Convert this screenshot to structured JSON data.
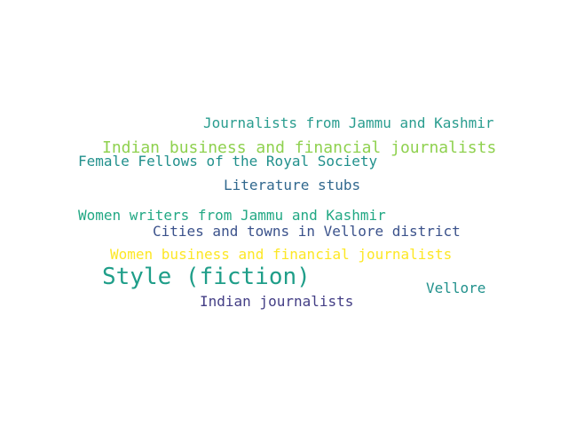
{
  "words": [
    {
      "text": "Journalists from Jammu and Kashmir",
      "color": "#2a9d8f"
    },
    {
      "text": "Indian business and financial journalists",
      "color": "#8fd14f"
    },
    {
      "text": "Female Fellows of the Royal Society",
      "color": "#21908c"
    },
    {
      "text": "Literature stubs",
      "color": "#31688e"
    },
    {
      "text": "Women writers from Jammu and Kashmir",
      "color": "#22a884"
    },
    {
      "text": "Cities and towns in Vellore district",
      "color": "#3b528b"
    },
    {
      "text": "Women business and financial journalists",
      "color": "#fde725"
    },
    {
      "text": "Style (fiction)",
      "color": "#1f9e89"
    },
    {
      "text": "Vellore",
      "color": "#21918c"
    },
    {
      "text": "Indian journalists",
      "color": "#433e85"
    }
  ]
}
